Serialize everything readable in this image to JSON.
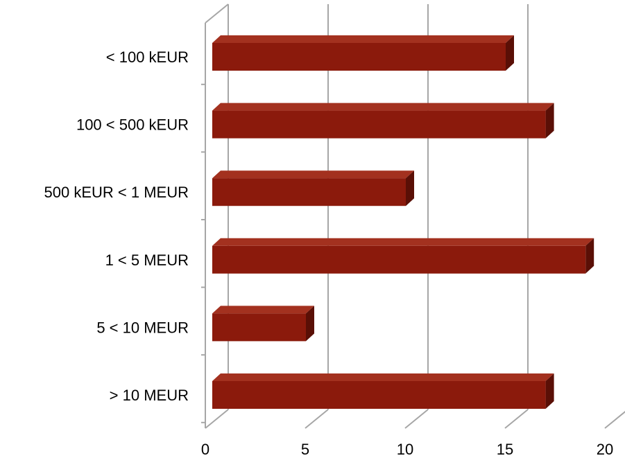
{
  "chart_data": {
    "type": "bar",
    "orientation": "horizontal",
    "three_d": true,
    "categories": [
      "< 100 kEUR",
      "100 < 500 kEUR",
      "500 kEUR < 1 MEUR",
      "1 < 5 MEUR",
      "5 < 10 MEUR",
      "> 10 MEUR"
    ],
    "values": [
      15,
      17,
      10,
      19,
      5,
      17
    ],
    "x_ticks": [
      "0",
      "5",
      "10",
      "15",
      "20"
    ],
    "xlim": [
      0,
      20
    ],
    "grid": true,
    "legend": false,
    "title": "",
    "xlabel": "",
    "ylabel": "",
    "colors": {
      "bar_front": "#8B1A0C",
      "bar_top": "#A3311F",
      "bar_side": "#5A0F06",
      "grid": "#A6A6A6"
    }
  }
}
